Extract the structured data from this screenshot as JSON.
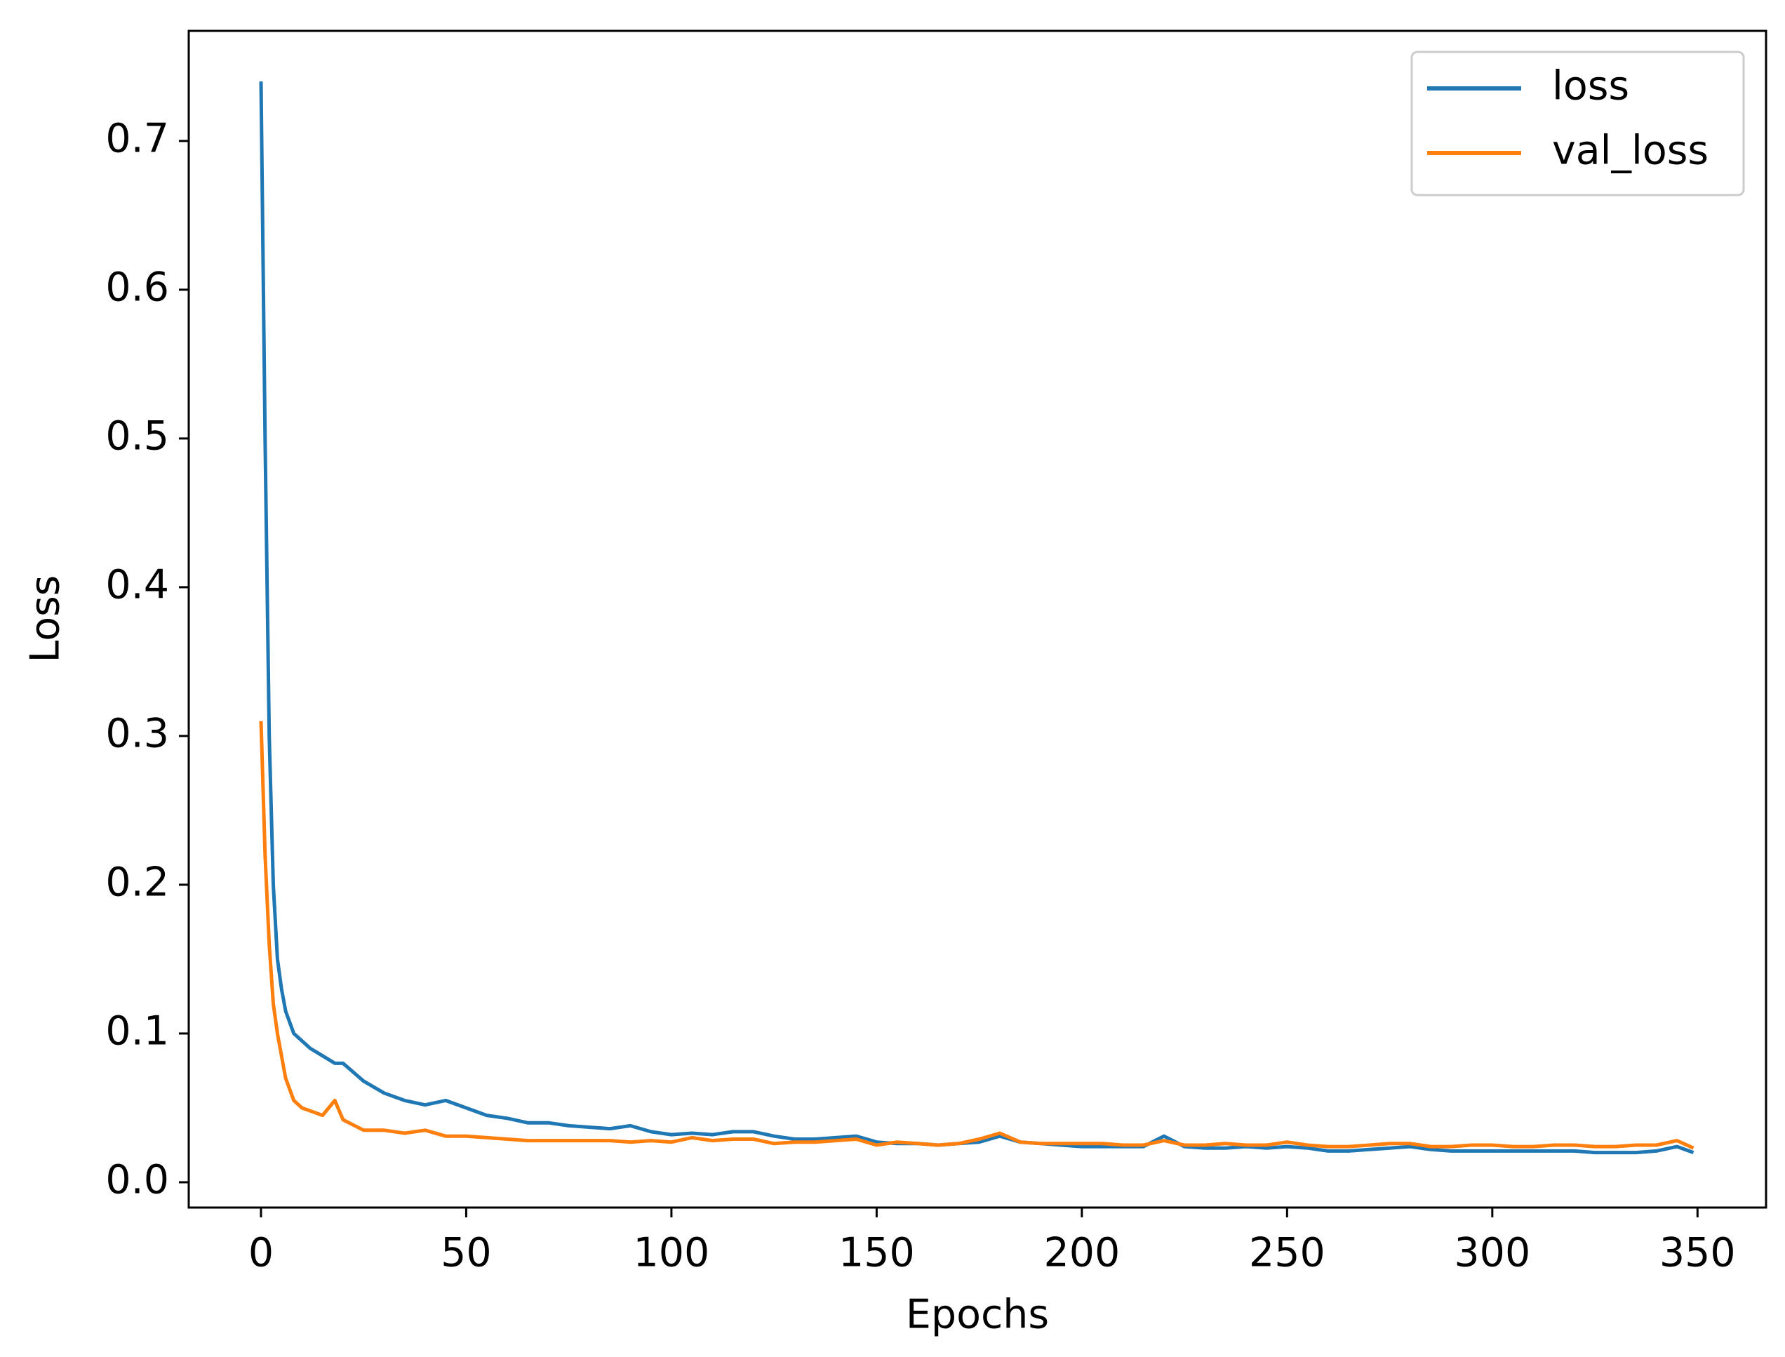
{
  "chart_data": {
    "type": "line",
    "xlabel": "Epochs",
    "ylabel": "Loss",
    "x": [
      0,
      1,
      2,
      3,
      4,
      5,
      6,
      8,
      10,
      12,
      15,
      18,
      20,
      25,
      30,
      35,
      40,
      45,
      50,
      55,
      60,
      65,
      70,
      75,
      80,
      85,
      90,
      95,
      100,
      105,
      110,
      115,
      120,
      125,
      130,
      135,
      140,
      145,
      150,
      155,
      160,
      165,
      170,
      175,
      180,
      185,
      190,
      195,
      200,
      205,
      210,
      215,
      220,
      225,
      230,
      235,
      240,
      245,
      250,
      255,
      260,
      265,
      270,
      275,
      280,
      285,
      290,
      295,
      300,
      305,
      310,
      315,
      320,
      325,
      330,
      335,
      340,
      345,
      349
    ],
    "series": [
      {
        "name": "loss",
        "color": "#1f77b4",
        "values": [
          0.74,
          0.5,
          0.3,
          0.2,
          0.15,
          0.13,
          0.115,
          0.1,
          0.095,
          0.09,
          0.085,
          0.08,
          0.08,
          0.068,
          0.06,
          0.055,
          0.052,
          0.055,
          0.05,
          0.045,
          0.043,
          0.04,
          0.04,
          0.038,
          0.037,
          0.036,
          0.038,
          0.034,
          0.032,
          0.033,
          0.032,
          0.034,
          0.034,
          0.031,
          0.029,
          0.029,
          0.03,
          0.031,
          0.027,
          0.026,
          0.026,
          0.025,
          0.026,
          0.027,
          0.031,
          0.027,
          0.026,
          0.025,
          0.024,
          0.024,
          0.024,
          0.024,
          0.031,
          0.024,
          0.023,
          0.023,
          0.024,
          0.023,
          0.024,
          0.023,
          0.021,
          0.021,
          0.022,
          0.023,
          0.024,
          0.022,
          0.021,
          0.021,
          0.021,
          0.021,
          0.021,
          0.021,
          0.021,
          0.02,
          0.02,
          0.02,
          0.021,
          0.024,
          0.02
        ]
      },
      {
        "name": "val_loss",
        "color": "#ff7f0e",
        "values": [
          0.31,
          0.22,
          0.16,
          0.12,
          0.1,
          0.085,
          0.07,
          0.055,
          0.05,
          0.048,
          0.045,
          0.055,
          0.042,
          0.035,
          0.035,
          0.033,
          0.035,
          0.031,
          0.031,
          0.03,
          0.029,
          0.028,
          0.028,
          0.028,
          0.028,
          0.028,
          0.027,
          0.028,
          0.027,
          0.03,
          0.028,
          0.029,
          0.029,
          0.026,
          0.027,
          0.027,
          0.028,
          0.029,
          0.025,
          0.027,
          0.026,
          0.025,
          0.026,
          0.029,
          0.033,
          0.027,
          0.026,
          0.026,
          0.026,
          0.026,
          0.025,
          0.025,
          0.028,
          0.025,
          0.025,
          0.026,
          0.025,
          0.025,
          0.027,
          0.025,
          0.024,
          0.024,
          0.025,
          0.026,
          0.026,
          0.024,
          0.024,
          0.025,
          0.025,
          0.024,
          0.024,
          0.025,
          0.025,
          0.024,
          0.024,
          0.025,
          0.025,
          0.028,
          0.023
        ]
      }
    ],
    "xlim": [
      -17.6,
      366.7
    ],
    "ylim": [
      -0.017,
      0.774
    ],
    "xticks": [
      0,
      50,
      100,
      150,
      200,
      250,
      300,
      350
    ],
    "yticks": [
      {
        "value": 0,
        "label": "0.0"
      },
      0.1,
      0.2,
      0.3,
      0.4,
      0.5,
      0.6,
      0.7
    ],
    "legend": "upper right"
  }
}
